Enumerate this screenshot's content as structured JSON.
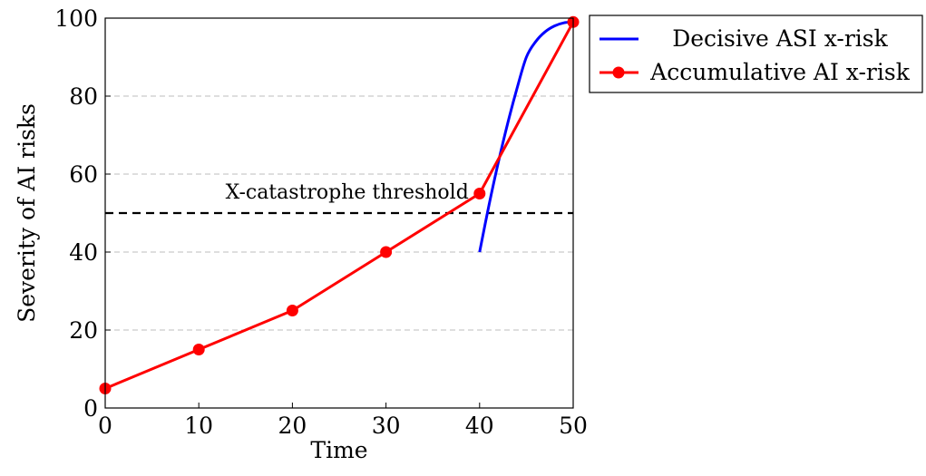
{
  "chart_data": {
    "type": "line",
    "xlabel": "Time",
    "ylabel": "Severity of AI risks",
    "xlim": [
      0,
      50
    ],
    "ylim": [
      0,
      100
    ],
    "xticks": [
      0,
      10,
      20,
      30,
      40,
      50
    ],
    "yticks": [
      0,
      20,
      40,
      60,
      80,
      100
    ],
    "grid": "horizontal dashed",
    "legend_position": "outside top-right",
    "threshold": {
      "y": 50,
      "label": "X-catastrophe threshold"
    },
    "series": [
      {
        "name": "Decisive ASI x-risk",
        "color": "#0000ff",
        "markers": false,
        "x": [
          40,
          41,
          42,
          43,
          44,
          45,
          46,
          47,
          48,
          49,
          50
        ],
        "y": [
          40,
          52,
          63,
          73,
          82,
          90,
          94,
          96.5,
          98,
          98.8,
          99
        ]
      },
      {
        "name": "Accumulative AI x-risk",
        "color": "#ff0000",
        "markers": true,
        "x": [
          0,
          10,
          20,
          30,
          40,
          50
        ],
        "y": [
          5,
          15,
          25,
          40,
          55,
          99
        ]
      }
    ]
  }
}
